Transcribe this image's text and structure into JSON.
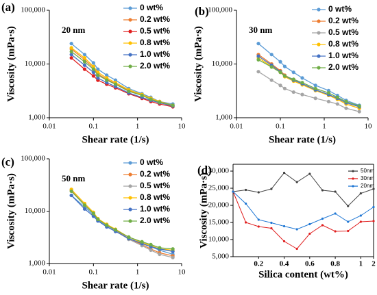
{
  "chart_data": [
    {
      "type": "line",
      "panel": "(a)",
      "annotation": "20 nm",
      "x_label": "Shear rate (1/s)",
      "y_label": "Viscosity (mPa·s)",
      "xscale": "log",
      "yscale": "log",
      "xlim": [
        0.01,
        10
      ],
      "ylim": [
        1000,
        100000
      ],
      "xticks": [
        0.01,
        0.1,
        1,
        10
      ],
      "yticks": [
        {
          "value": 1000,
          "label": "1,000"
        },
        {
          "value": 10000,
          "label": "10,000"
        },
        {
          "value": 100000,
          "label": "100,000"
        }
      ],
      "x": [
        0.0316,
        0.0631,
        0.1,
        0.126,
        0.2,
        0.316,
        0.631,
        1.26,
        2,
        3.16,
        6.31
      ],
      "series": [
        {
          "name": "0 wt%",
          "color": "#5b9bd5",
          "values": [
            24000,
            15000,
            10500,
            8000,
            6200,
            5000,
            3500,
            2800,
            2400,
            2000,
            1800
          ]
        },
        {
          "name": "0.2 wt%",
          "color": "#ed7d31",
          "values": [
            19000,
            12000,
            8500,
            6500,
            5200,
            4300,
            3200,
            2700,
            2300,
            2000,
            1700
          ]
        },
        {
          "name": "0.5 wt%",
          "color": "#e02020",
          "values": [
            13000,
            8000,
            6000,
            5000,
            4200,
            3600,
            2800,
            2300,
            2000,
            1800,
            1600
          ]
        },
        {
          "name": "0.8 wt%",
          "color": "#ffc000",
          "values": [
            20000,
            13000,
            9000,
            7000,
            5500,
            4500,
            3300,
            2700,
            2300,
            2000,
            1700
          ]
        },
        {
          "name": "1.0 wt%",
          "color": "#4472c4",
          "values": [
            15000,
            9500,
            7000,
            5500,
            4500,
            3800,
            2900,
            2400,
            2100,
            1900,
            1650
          ]
        },
        {
          "name": "2.0 wt%",
          "color": "#70ad47",
          "values": [
            17000,
            11000,
            8000,
            6200,
            5000,
            4200,
            3100,
            2600,
            2200,
            1950,
            1700
          ]
        }
      ]
    },
    {
      "type": "line",
      "panel": "(b)",
      "annotation": "30 nm",
      "x_label": "Shear rate (1/s)",
      "y_label": "Viscosity (mPa·s)",
      "xscale": "log",
      "yscale": "log",
      "xlim": [
        0.01,
        10
      ],
      "ylim": [
        1000,
        100000
      ],
      "xticks": [
        0.01,
        0.1,
        1,
        10
      ],
      "yticks": [
        {
          "value": 1000,
          "label": "1,000"
        },
        {
          "value": 10000,
          "label": "10,000"
        },
        {
          "value": 100000,
          "label": "100,000"
        }
      ],
      "x": [
        0.0316,
        0.0631,
        0.1,
        0.126,
        0.2,
        0.316,
        0.631,
        1.26,
        2,
        3.16,
        6.31
      ],
      "series": [
        {
          "name": "0 wt%",
          "color": "#5b9bd5",
          "values": [
            24000,
            15000,
            11000,
            9000,
            7000,
            5500,
            4000,
            3200,
            2600,
            2100,
            1700
          ]
        },
        {
          "name": "0.2 wt%",
          "color": "#ed7d31",
          "values": [
            15000,
            10000,
            7500,
            6200,
            5000,
            4300,
            3300,
            2700,
            2200,
            1800,
            1500
          ]
        },
        {
          "name": "0.5 wt%",
          "color": "#a5a5a5",
          "values": [
            7200,
            5000,
            4000,
            3500,
            3000,
            2700,
            2300,
            2000,
            1800,
            1500,
            1300
          ]
        },
        {
          "name": "0.8 wt%",
          "color": "#ffc000",
          "values": [
            13000,
            9000,
            7000,
            5800,
            4800,
            4100,
            3200,
            2600,
            2200,
            1800,
            1500
          ]
        },
        {
          "name": "1.0 wt%",
          "color": "#4472c4",
          "values": [
            14000,
            9500,
            7200,
            6000,
            5000,
            4300,
            3300,
            2700,
            2300,
            1900,
            1600
          ]
        },
        {
          "name": "2.0 wt%",
          "color": "#70ad47",
          "values": [
            12000,
            8800,
            7000,
            6000,
            5200,
            4500,
            3500,
            2900,
            2400,
            2000,
            1650
          ]
        }
      ]
    },
    {
      "type": "line",
      "panel": "(c)",
      "annotation": "50 nm",
      "x_label": "Shear rate (1/s)",
      "y_label": "Viscosity (mPa·s)",
      "xscale": "log",
      "yscale": "log",
      "xlim": [
        0.01,
        10
      ],
      "ylim": [
        1000,
        100000
      ],
      "xticks": [
        0.01,
        0.1,
        1,
        10
      ],
      "yticks": [
        {
          "value": 1000,
          "label": "1,000"
        },
        {
          "value": 10000,
          "label": "10,000"
        },
        {
          "value": 100000,
          "label": "100,000"
        }
      ],
      "x": [
        0.0316,
        0.0631,
        0.1,
        0.126,
        0.2,
        0.316,
        0.631,
        1.26,
        2,
        3.16,
        6.31
      ],
      "series": [
        {
          "name": "0 wt%",
          "color": "#5b9bd5",
          "values": [
            20000,
            12000,
            8500,
            6700,
            5200,
            4200,
            3000,
            2400,
            2100,
            1800,
            1500
          ]
        },
        {
          "name": "0.2 wt%",
          "color": "#ed7d31",
          "values": [
            25000,
            13000,
            9000,
            7000,
            5300,
            4300,
            3000,
            2300,
            1900,
            1600,
            1400
          ]
        },
        {
          "name": "0.5 wt%",
          "color": "#a5a5a5",
          "values": [
            26000,
            13500,
            9000,
            7000,
            5300,
            4200,
            2900,
            2200,
            1800,
            1500,
            1300
          ]
        },
        {
          "name": "0.8 wt%",
          "color": "#ffc000",
          "values": [
            26000,
            14000,
            9500,
            7200,
            5600,
            4500,
            3200,
            2500,
            2200,
            1900,
            1800
          ]
        },
        {
          "name": "1.0 wt%",
          "color": "#4472c4",
          "values": [
            20000,
            11000,
            8000,
            6500,
            5000,
            4100,
            3000,
            2400,
            2100,
            1900,
            1700
          ]
        },
        {
          "name": "2.0 wt%",
          "color": "#70ad47",
          "values": [
            24000,
            13000,
            9000,
            7000,
            5400,
            4400,
            3200,
            2600,
            2300,
            2000,
            1900
          ]
        }
      ]
    },
    {
      "type": "line",
      "panel": "(d)",
      "x_label": "Silica content (wt%)",
      "y_label": "Viscosity (mPa·s)",
      "ylim": [
        5000,
        32000
      ],
      "yticks": [
        {
          "value": 5000,
          "label": "5,000"
        },
        {
          "value": 10000,
          "label": "10,000"
        },
        {
          "value": 15000,
          "label": "15,000"
        },
        {
          "value": 20000,
          "label": "20,000"
        },
        {
          "value": 25000,
          "label": "25,000"
        },
        {
          "value": 30000,
          "label": "30,000"
        }
      ],
      "categories": [
        null,
        null,
        "0.2",
        null,
        "0.4",
        null,
        "0.6",
        null,
        "0.8",
        null,
        "1",
        "2"
      ],
      "series": [
        {
          "name": "50nm",
          "color": "#404040",
          "values": [
            24000,
            24500,
            23800,
            24800,
            29500,
            26800,
            29200,
            24400,
            24000,
            19800,
            23500,
            24800
          ]
        },
        {
          "name": "30nm",
          "color": "#e02020",
          "values": [
            24000,
            15000,
            13800,
            13300,
            9500,
            7300,
            11700,
            14200,
            12400,
            12500,
            15200,
            15400
          ]
        },
        {
          "name": "20nm",
          "color": "#1f77d4",
          "values": [
            24000,
            20500,
            15800,
            14900,
            13900,
            13000,
            14500,
            16100,
            17600,
            15200,
            17000,
            19500
          ]
        }
      ]
    }
  ]
}
